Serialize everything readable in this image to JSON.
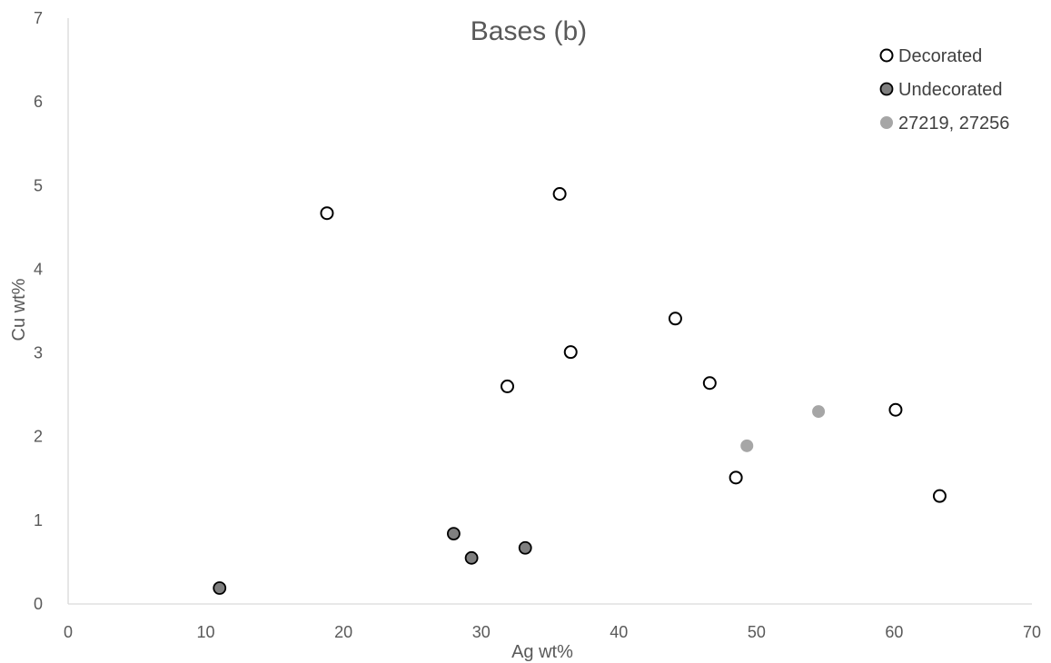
{
  "chart_data": {
    "type": "scatter",
    "title": "Bases (b)",
    "xlabel": "Ag wt%",
    "ylabel": "Cu wt%",
    "xlim": [
      0,
      70
    ],
    "ylim": [
      0,
      7
    ],
    "xticks": [
      0,
      10,
      20,
      30,
      40,
      50,
      60,
      70
    ],
    "yticks": [
      0,
      1,
      2,
      3,
      4,
      5,
      6,
      7
    ],
    "grid": false,
    "legend_position": "top-right",
    "series": [
      {
        "name": "Decorated",
        "marker": "open-circle",
        "color": "#000000",
        "fill": "#ffffff",
        "points": [
          {
            "x": 18.8,
            "y": 4.67
          },
          {
            "x": 35.7,
            "y": 4.9
          },
          {
            "x": 31.9,
            "y": 2.6
          },
          {
            "x": 36.5,
            "y": 3.01
          },
          {
            "x": 44.1,
            "y": 3.41
          },
          {
            "x": 46.6,
            "y": 2.64
          },
          {
            "x": 48.5,
            "y": 1.51
          },
          {
            "x": 60.1,
            "y": 2.32
          },
          {
            "x": 63.3,
            "y": 1.29
          }
        ]
      },
      {
        "name": "Undecorated",
        "marker": "filled-circle-outlined",
        "color": "#000000",
        "fill": "#7f7f7f",
        "points": [
          {
            "x": 11.0,
            "y": 0.19
          },
          {
            "x": 28.0,
            "y": 0.84
          },
          {
            "x": 29.3,
            "y": 0.55
          },
          {
            "x": 33.2,
            "y": 0.67
          }
        ]
      },
      {
        "name": "27219, 27256",
        "marker": "filled-circle",
        "color": "#a6a6a6",
        "fill": "#a6a6a6",
        "points": [
          {
            "x": 49.3,
            "y": 1.89
          },
          {
            "x": 54.5,
            "y": 2.3
          }
        ]
      }
    ]
  }
}
